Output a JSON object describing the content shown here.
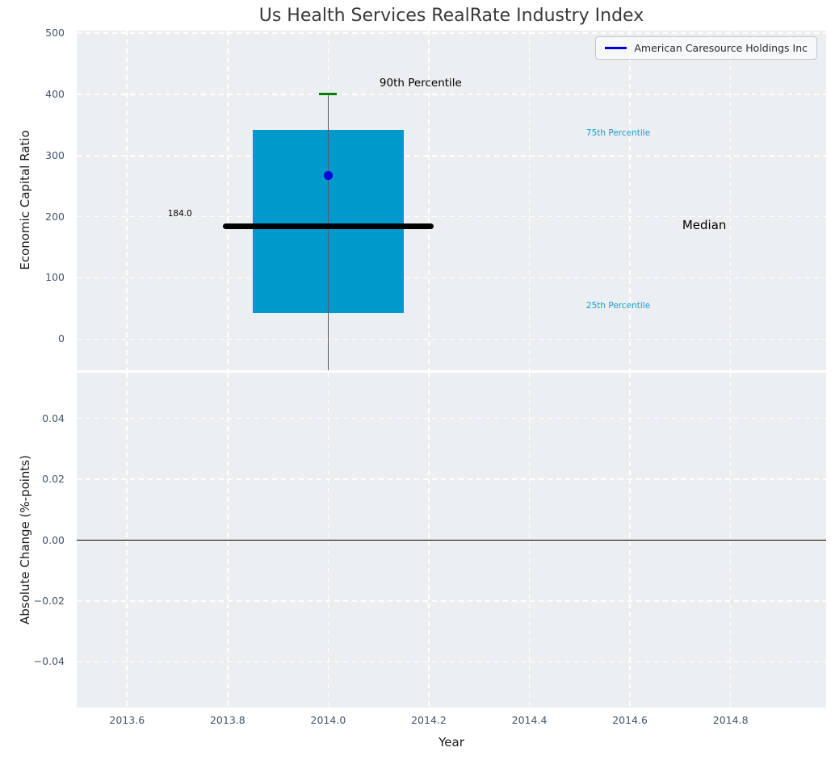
{
  "colors": {
    "axes_bg": "#eceff1",
    "grid": "#ffffff",
    "tick_text": "#44546a",
    "box_fill": "#0099cb",
    "median": "#000000",
    "whisker": "#5a5a5a",
    "p90_cap": "#008000",
    "company": "#0000dd",
    "zero_line": "#000000",
    "annotation_cyan": "#1c9cca"
  },
  "chart_data": [
    {
      "type": "boxplot",
      "title": "Us Health Services RealRate Industry Index",
      "ylabel": "Economic Capital Ratio",
      "xlim": [
        2013.5,
        2014.99
      ],
      "ylim": [
        -51,
        504
      ],
      "yticks": [
        0,
        100,
        200,
        300,
        400,
        500
      ],
      "ytick_labels": [
        "0",
        "100",
        "200",
        "300",
        "400",
        "500"
      ],
      "xticks": [
        2013.6,
        2013.8,
        2014.0,
        2014.2,
        2014.4,
        2014.6,
        2014.8
      ],
      "grid": true,
      "legend": {
        "position": "upper right",
        "entries": [
          "American Caresource Holdings Inc"
        ]
      },
      "box": {
        "x": 2014.0,
        "p90": 401,
        "p75": 342,
        "median": 184.0,
        "p25": 42,
        "whisker_low": "clipped below axis bottom",
        "box_half_width": 0.15,
        "median_half_width": 0.21,
        "company_point": {
          "name": "American Caresource Holdings Inc",
          "x": 2014.0,
          "y": 268
        }
      },
      "annotations": [
        {
          "text": "90th Percentile",
          "x": 2014.102,
          "y": 416,
          "color": "#000000",
          "size": 13.5
        },
        {
          "text": "75th Percentile",
          "x": 2014.513,
          "y": 334,
          "color": "#1c9cca",
          "size": 10.5
        },
        {
          "text": "Median",
          "x": 2014.704,
          "y": 184,
          "color": "#000000",
          "size": 15
        },
        {
          "text": "25th Percentile",
          "x": 2014.513,
          "y": 53,
          "color": "#1c9cca",
          "size": 10.5
        },
        {
          "text": "184.0",
          "x": 2013.681,
          "y": 203,
          "color": "#000000",
          "size": 10.5
        }
      ]
    },
    {
      "type": "line",
      "ylabel": "Absolute Change (%-points)",
      "xlabel": "Year",
      "xlim": [
        2013.5,
        2014.99
      ],
      "ylim": [
        -0.055,
        0.055
      ],
      "yticks": [
        -0.04,
        -0.02,
        0,
        0.02,
        0.04
      ],
      "ytick_labels": [
        "−0.04",
        "−0.02",
        "0.00",
        "0.02",
        "0.04"
      ],
      "xticks": [
        2013.6,
        2013.8,
        2014.0,
        2014.2,
        2014.4,
        2014.6,
        2014.8
      ],
      "xtick_labels": [
        "2013.6",
        "2013.8",
        "2014.0",
        "2014.2",
        "2014.4",
        "2014.6",
        "2014.8"
      ],
      "grid": true,
      "zero_line_y": 0.0,
      "series": []
    }
  ]
}
